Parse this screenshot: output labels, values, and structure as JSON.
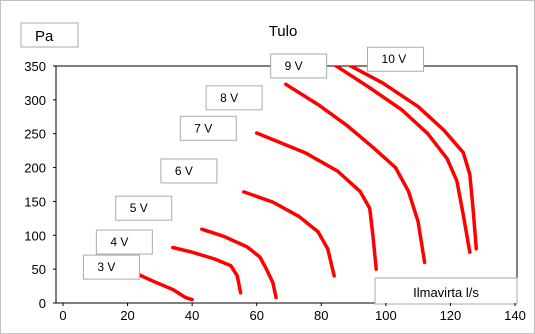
{
  "chart_data": {
    "type": "line",
    "title": "Tulo",
    "ylabel": "Pa",
    "xlabel": "Ilmavirta l/s",
    "xlim": [
      0,
      140
    ],
    "ylim": [
      0,
      350
    ],
    "x_ticks": [
      0,
      20,
      40,
      60,
      80,
      100,
      120,
      140
    ],
    "y_ticks": [
      0,
      50,
      100,
      150,
      200,
      250,
      300,
      350
    ],
    "grid": false,
    "series": [
      {
        "name": "3 V",
        "label_at": [
          15,
          53
        ],
        "points": [
          [
            22,
            45
          ],
          [
            28,
            32
          ],
          [
            34,
            20
          ],
          [
            38,
            8
          ],
          [
            40,
            5
          ]
        ]
      },
      {
        "name": "4 V",
        "label_at": [
          19,
          90
        ],
        "points": [
          [
            34,
            82
          ],
          [
            40,
            75
          ],
          [
            47,
            65
          ],
          [
            52,
            55
          ],
          [
            54,
            40
          ],
          [
            55,
            15
          ]
        ]
      },
      {
        "name": "5 V",
        "label_at": [
          25,
          140
        ],
        "points": [
          [
            43,
            109
          ],
          [
            50,
            98
          ],
          [
            57,
            83
          ],
          [
            61,
            68
          ],
          [
            63,
            50
          ],
          [
            65,
            30
          ],
          [
            66,
            8
          ]
        ]
      },
      {
        "name": "6 V",
        "label_at": [
          39,
          195
        ],
        "points": [
          [
            56,
            164
          ],
          [
            65,
            149
          ],
          [
            73,
            128
          ],
          [
            79,
            105
          ],
          [
            82,
            80
          ],
          [
            84,
            40
          ]
        ]
      },
      {
        "name": "7 V",
        "label_at": [
          45,
          258
        ],
        "points": [
          [
            60,
            251
          ],
          [
            75,
            222
          ],
          [
            85,
            195
          ],
          [
            92,
            165
          ],
          [
            95,
            140
          ],
          [
            96,
            100
          ],
          [
            97,
            50
          ]
        ]
      },
      {
        "name": "8 V",
        "label_at": [
          53,
          303
        ],
        "points": [
          [
            69,
            323
          ],
          [
            79,
            293
          ],
          [
            88,
            262
          ],
          [
            96,
            230
          ],
          [
            103,
            200
          ],
          [
            107,
            165
          ],
          [
            110,
            120
          ],
          [
            112,
            60
          ]
        ]
      },
      {
        "name": "9 V",
        "label_at": [
          73,
          350
        ],
        "points": [
          [
            83,
            355
          ],
          [
            95,
            318
          ],
          [
            105,
            285
          ],
          [
            113,
            250
          ],
          [
            119,
            213
          ],
          [
            122,
            180
          ],
          [
            124,
            130
          ],
          [
            126,
            75
          ]
        ]
      },
      {
        "name": "10 V",
        "label_at": [
          103,
          360
        ],
        "points": [
          [
            86,
            358
          ],
          [
            99,
            325
          ],
          [
            110,
            290
          ],
          [
            118,
            255
          ],
          [
            124,
            222
          ],
          [
            126,
            190
          ],
          [
            127,
            140
          ],
          [
            128,
            80
          ]
        ]
      }
    ]
  },
  "colors": {
    "curve": "#ff0000",
    "axis": "#000000",
    "box_border": "#aaaaaa"
  }
}
